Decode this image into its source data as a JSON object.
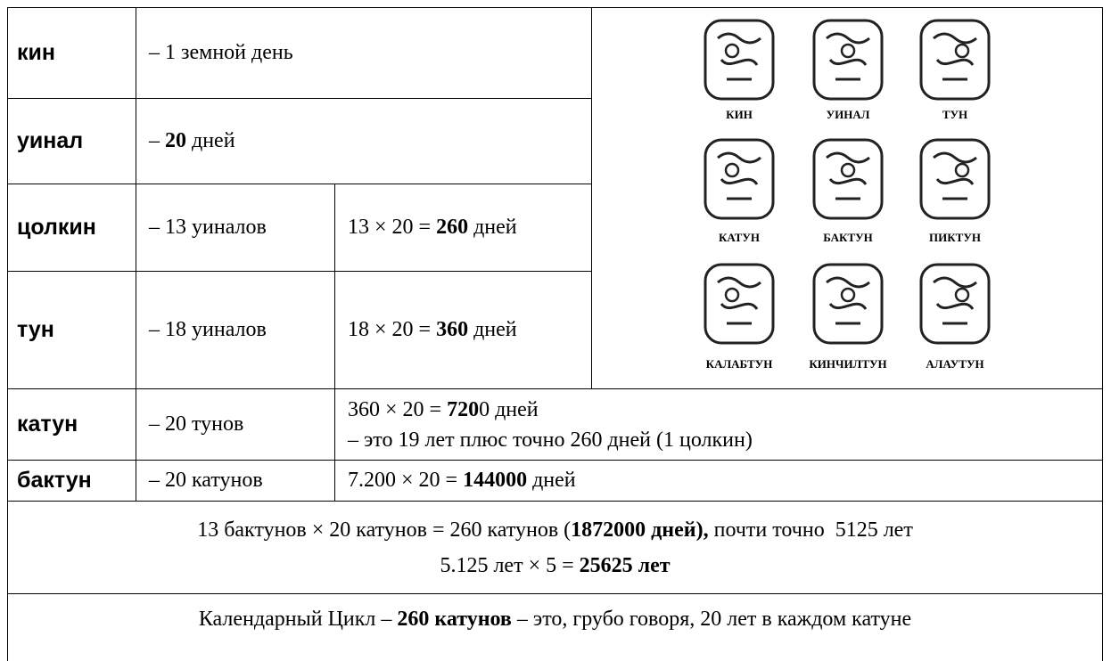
{
  "table": {
    "rows": [
      {
        "term": "кин",
        "cells": [
          [
            "– 1 земной день"
          ]
        ]
      },
      {
        "term": "уинал",
        "cells": [
          [
            "– ",
            "20",
            " дней"
          ]
        ]
      },
      {
        "term": "цолкин",
        "cells": [
          [
            "– 13 уиналов"
          ],
          [
            "13 × 20 = ",
            "260",
            " дней"
          ]
        ]
      },
      {
        "term": "тун",
        "cells": [
          [
            "– 18 уиналов"
          ],
          [
            "18 × 20 = ",
            "360",
            " дней"
          ]
        ]
      },
      {
        "term": "катун",
        "cells": [
          [
            "– 20 тунов"
          ],
          [
            "360 × 20 = ",
            "720",
            "0 дней",
            "– это 19 лет плюс точно 260 дней (1 цолкин)"
          ]
        ]
      },
      {
        "term": "бактун",
        "cells": [
          [
            "– 20 катунов"
          ],
          [
            "7.200 × 20 = ",
            "144000",
            " дней"
          ]
        ]
      },
      {
        "cells": [
          [
            "13 бактунов × 20 катунов = 260 катунов (",
            "1872000 дней),",
            " почти точно  5125 лет",
            "5.125 лет × 5 = ",
            "25625 лет"
          ]
        ]
      },
      {
        "cells": [
          [
            "Календарный Цикл – ",
            "260 катунов",
            " – это, грубо говоря, 20 лет в каждом катуне"
          ]
        ]
      }
    ]
  },
  "glyphs": {
    "labels": [
      "КИН",
      "УИНАЛ",
      "ТУН",
      "КАТУН",
      "БАКТУН",
      "ПИКТУН",
      "КАЛАБТУН",
      "КИНЧИЛТУН",
      "АЛАУТУН"
    ]
  }
}
